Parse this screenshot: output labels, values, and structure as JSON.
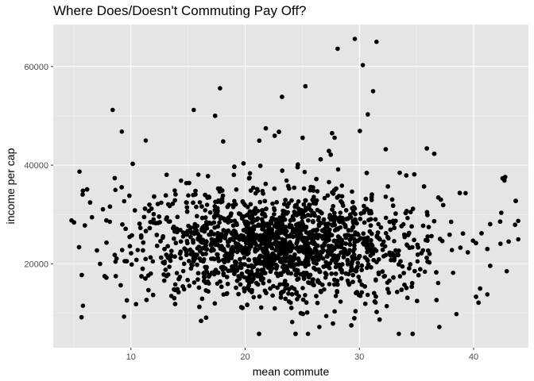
{
  "chart_data": {
    "type": "scatter",
    "title": "Where Does/Doesn't Commuting Pay Off?",
    "xlabel": "mean commute",
    "ylabel": "income per cap",
    "xlim": [
      3.2,
      44.8
    ],
    "ylim": [
      3000,
      68500
    ],
    "xticks": [
      10,
      20,
      30,
      40
    ],
    "yticks": [
      20000,
      40000,
      60000
    ],
    "ytick_labels": [
      "20000",
      "40000",
      "60000"
    ],
    "grid": true,
    "background": "#e5e5e5",
    "point_color": "#000000",
    "approx_point_count": 3200,
    "notable_points": [
      {
        "x": 29.6,
        "y": 65600
      },
      {
        "x": 31.5,
        "y": 65000
      },
      {
        "x": 28.1,
        "y": 63600
      },
      {
        "x": 30.3,
        "y": 60300
      },
      {
        "x": 17.8,
        "y": 55600
      },
      {
        "x": 31.2,
        "y": 55000
      },
      {
        "x": 8.4,
        "y": 51200
      },
      {
        "x": 15.5,
        "y": 51200
      },
      {
        "x": 9.2,
        "y": 46800
      },
      {
        "x": 11.3,
        "y": 45000
      },
      {
        "x": 5.5,
        "y": 38700
      },
      {
        "x": 4.8,
        "y": 28800
      },
      {
        "x": 5.8,
        "y": 11500
      },
      {
        "x": 9.4,
        "y": 9300
      },
      {
        "x": 42.7,
        "y": 36900
      },
      {
        "x": 43.9,
        "y": 28700
      },
      {
        "x": 42.9,
        "y": 18500
      },
      {
        "x": 41.2,
        "y": 13800
      },
      {
        "x": 25.5,
        "y": 5800
      },
      {
        "x": 26.5,
        "y": 7200
      },
      {
        "x": 38.5,
        "y": 9800
      },
      {
        "x": 37.0,
        "y": 7200
      }
    ]
  }
}
